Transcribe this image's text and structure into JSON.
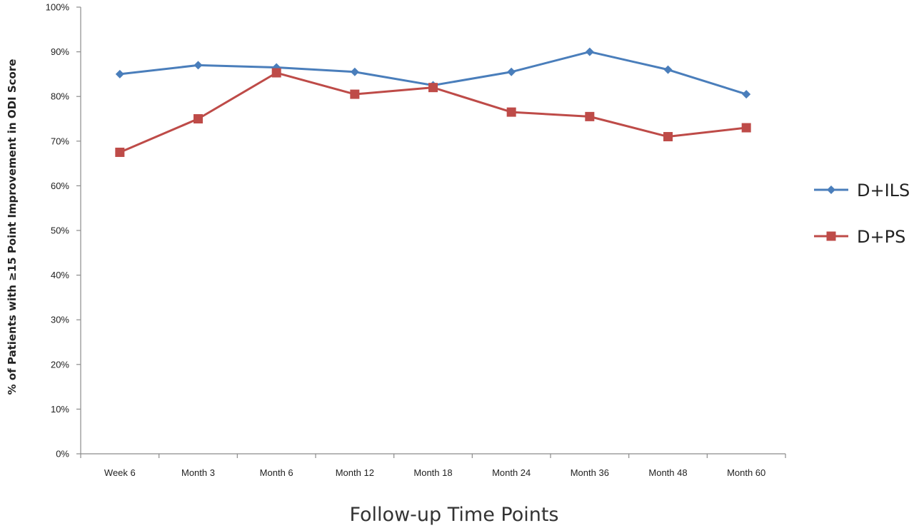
{
  "chart_data": {
    "type": "line",
    "title": "",
    "xlabel": "Follow-up Time Points",
    "ylabel": "% of Patients with ≥15 Point Improvement in ODI Score",
    "categories": [
      "Week 6",
      "Month 3",
      "Month 6",
      "Month 12",
      "Month 18",
      "Month 24",
      "Month 36",
      "Month 48",
      "Month 60"
    ],
    "ylim": [
      0,
      100
    ],
    "yticks": [
      0,
      10,
      20,
      30,
      40,
      50,
      60,
      70,
      80,
      90,
      100
    ],
    "ytick_labels": [
      "0%",
      "10%",
      "20%",
      "30%",
      "40%",
      "50%",
      "60%",
      "70%",
      "80%",
      "90%",
      "100%"
    ],
    "grid": false,
    "legend_position": "right",
    "series": [
      {
        "name": "D+ILS",
        "color": "#4A7EBB",
        "marker": "diamond",
        "values": [
          85,
          87,
          86.5,
          85.5,
          82.5,
          85.5,
          90,
          86,
          80.5
        ]
      },
      {
        "name": "D+PS",
        "color": "#BE4B48",
        "marker": "square",
        "values": [
          67.5,
          75,
          85.3,
          80.5,
          82,
          76.5,
          75.5,
          71,
          73
        ]
      }
    ]
  }
}
